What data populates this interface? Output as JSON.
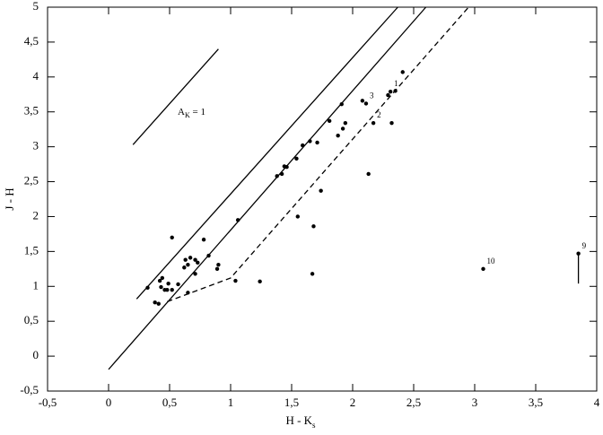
{
  "chart_data": {
    "type": "scatter",
    "xlabel": "H - K",
    "xlabel_subscript": "s",
    "ylabel": "J - H",
    "annotation": {
      "text": "A",
      "subscript": "K",
      "after": " = 1"
    },
    "xlim": [
      -0.5,
      4
    ],
    "ylim": [
      -0.5,
      5
    ],
    "xticks": [
      {
        "value": -0.5,
        "label": "-0,5"
      },
      0,
      {
        "value": 0.5,
        "label": "0,5"
      },
      1,
      {
        "value": 1.5,
        "label": "1,5"
      },
      2,
      {
        "value": 2.5,
        "label": "2,5"
      },
      3,
      {
        "value": 3.5,
        "label": "3,5"
      },
      4
    ],
    "yticks": [
      {
        "value": -0.5,
        "label": "-0,5"
      },
      0,
      {
        "value": 0.5,
        "label": "0,5"
      },
      1,
      {
        "value": 1.5,
        "label": "1,5"
      },
      2,
      {
        "value": 2.5,
        "label": "2,5"
      },
      3,
      {
        "value": 3.5,
        "label": "3,5"
      },
      4,
      {
        "value": 4.5,
        "label": "4,5"
      },
      5
    ],
    "color": "#000000",
    "x": [
      0.32,
      0.38,
      0.41,
      0.42,
      0.44,
      0.43,
      0.46,
      0.49,
      0.48,
      0.52,
      0.52,
      0.57,
      0.62,
      0.63,
      0.65,
      0.67,
      0.65,
      0.71,
      0.73,
      0.71,
      0.78,
      0.82,
      0.9,
      0.89,
      1.04,
      1.06,
      1.24,
      1.38,
      1.42,
      1.44,
      1.46,
      1.54,
      1.55,
      1.59,
      1.65,
      1.67,
      1.68,
      1.71,
      1.74,
      1.81,
      1.88,
      1.92,
      1.94,
      1.91,
      2.08,
      2.11,
      2.13,
      2.17,
      2.29,
      2.31,
      2.35,
      2.32,
      2.41,
      3.07,
      3.85
    ],
    "y": [
      0.98,
      0.77,
      0.75,
      1.08,
      1.12,
      0.99,
      0.95,
      1.04,
      0.95,
      0.95,
      1.7,
      1.03,
      1.27,
      1.38,
      1.31,
      1.41,
      0.91,
      1.38,
      1.34,
      1.18,
      1.67,
      1.44,
      1.31,
      1.25,
      1.08,
      1.95,
      1.07,
      2.58,
      2.61,
      2.72,
      2.71,
      2.83,
      2.0,
      3.02,
      3.08,
      1.18,
      1.86,
      3.06,
      2.37,
      3.37,
      3.16,
      3.26,
      3.34,
      3.61,
      3.66,
      3.62,
      2.61,
      3.34,
      3.74,
      3.79,
      3.8,
      3.34,
      4.07,
      1.25,
      1.47
    ],
    "labels": [
      null,
      null,
      null,
      null,
      null,
      null,
      null,
      null,
      null,
      null,
      null,
      null,
      null,
      null,
      null,
      null,
      null,
      null,
      null,
      null,
      null,
      null,
      null,
      null,
      null,
      null,
      null,
      null,
      null,
      null,
      null,
      null,
      null,
      null,
      null,
      null,
      null,
      null,
      null,
      null,
      null,
      null,
      null,
      null,
      null,
      "3",
      null,
      "2",
      null,
      "1",
      null,
      null,
      null,
      "10",
      "9"
    ],
    "lines": [
      {
        "x": [
          0.2,
          0.9
        ],
        "y": [
          3.03,
          4.4
        ],
        "dashed": false
      },
      {
        "x": [
          0.23,
          2.37
        ],
        "y": [
          0.82,
          5
        ],
        "dashed": false
      },
      {
        "x": [
          0,
          2.6
        ],
        "y": [
          -0.19,
          5
        ],
        "dashed": false
      },
      {
        "x": [
          0.48,
          1.0,
          2.95
        ],
        "y": [
          0.78,
          1.12,
          5
        ],
        "dashed": true
      },
      {
        "x": [
          3.85,
          3.85
        ],
        "y": [
          1.47,
          1.04
        ],
        "dashed": false
      }
    ]
  }
}
